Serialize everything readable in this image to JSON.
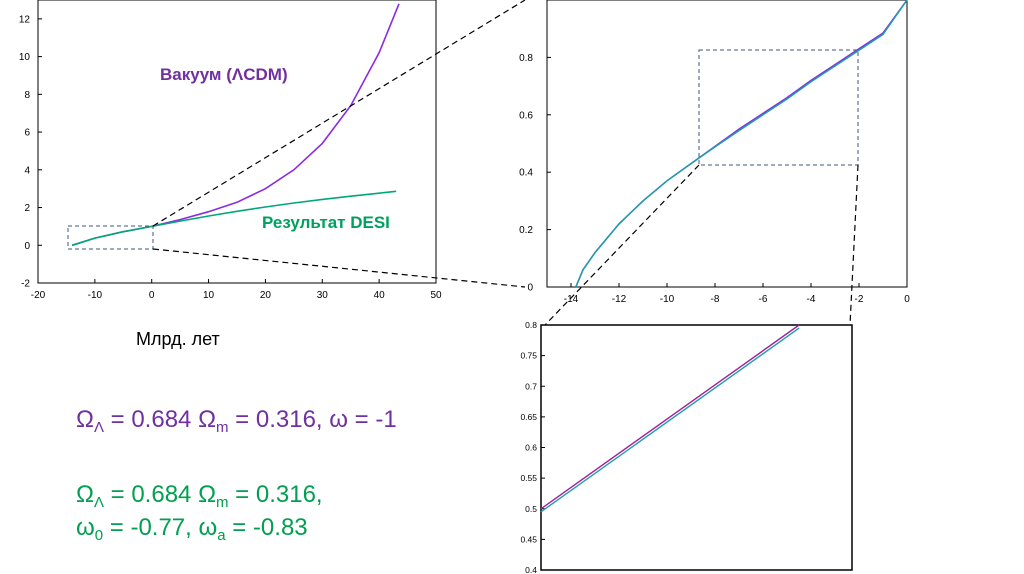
{
  "chart_data": [
    {
      "type": "line",
      "xlabel": "Млрд. лет",
      "xlim": [
        -20,
        50
      ],
      "ylim": [
        -2,
        13
      ],
      "xticks": [
        "-20",
        "-10",
        "0",
        "10",
        "20",
        "30",
        "40",
        "50"
      ],
      "yticks": [
        "-2",
        "0",
        "2",
        "4",
        "6",
        "8",
        "10",
        "12"
      ],
      "colors": {
        "vacuum": "#8a2be2",
        "desi": "#00a878",
        "box": "#2f4f6f"
      },
      "series": [
        {
          "name": "Вакуум (ΛCDM)",
          "x": [
            -14.0,
            -10,
            -5,
            0,
            5,
            10,
            15,
            20,
            25,
            30,
            35,
            40,
            43.5
          ],
          "y": [
            0.0,
            0.38,
            0.72,
            1.0,
            1.36,
            1.78,
            2.28,
            3.0,
            4.0,
            5.4,
            7.4,
            10.2,
            12.8
          ]
        },
        {
          "name": "Результат DESI",
          "x": [
            -14.0,
            -10,
            -5,
            0,
            5,
            10,
            15,
            20,
            25,
            30,
            35,
            40,
            43
          ],
          "y": [
            0.0,
            0.38,
            0.72,
            1.0,
            1.28,
            1.55,
            1.8,
            2.03,
            2.24,
            2.43,
            2.6,
            2.76,
            2.86
          ]
        }
      ],
      "zoom_box": {
        "x": [
          -14.5,
          0.5
        ],
        "y": [
          -0.15,
          1.1
        ]
      }
    },
    {
      "type": "line",
      "xlim": [
        -15,
        0
      ],
      "ylim": [
        0,
        1.0
      ],
      "xticks": [
        "-14",
        "-12",
        "-10",
        "-8",
        "-6",
        "-4",
        "-2",
        "0"
      ],
      "yticks": [
        "0",
        "0.2",
        "0.4",
        "0.6",
        "0.8"
      ],
      "series": [
        {
          "x": [
            -13.8,
            -13.5,
            -13,
            -12,
            -11,
            -10,
            -9,
            -8,
            -7,
            -6,
            -5,
            -4,
            -3,
            -2,
            -1,
            0
          ],
          "y": [
            0.0,
            0.06,
            0.12,
            0.22,
            0.3,
            0.37,
            0.43,
            0.49,
            0.55,
            0.605,
            0.66,
            0.72,
            0.775,
            0.83,
            0.885,
            1.0
          ]
        },
        {
          "x": [
            -13.8,
            -13.5,
            -13,
            -12,
            -11,
            -10,
            -9,
            -8,
            -7,
            -6,
            -5,
            -4,
            -3,
            -2,
            -1,
            0
          ],
          "y": [
            0.0,
            0.06,
            0.12,
            0.22,
            0.3,
            0.37,
            0.43,
            0.488,
            0.545,
            0.6,
            0.655,
            0.715,
            0.77,
            0.825,
            0.88,
            1.0
          ]
        }
      ],
      "zoom_box": {
        "x": [
          -8.3,
          -1.9
        ],
        "y": [
          0.42,
          0.82
        ]
      }
    },
    {
      "type": "line",
      "ylim": [
        0.4,
        0.8
      ],
      "yticks": [
        "0.4",
        "0.45",
        "0.5",
        "0.55",
        "0.6",
        "0.65",
        "0.7",
        "0.75",
        "0.8"
      ],
      "series": [
        {
          "x": [
            0,
            1
          ],
          "y": [
            0.5,
            0.8
          ]
        },
        {
          "x": [
            0,
            1
          ],
          "y": [
            0.495,
            0.795
          ]
        }
      ]
    }
  ],
  "labels": {
    "vacuum": "Вакуум (ΛCDM)",
    "desi": "Результат DESI",
    "xunit": "Млрд. лет"
  },
  "formulas": {
    "line1": {
      "omega_l": "Ω",
      "sub_l": "Λ",
      "val_l": " = 0.684  Ω",
      "sub_m": "m",
      "val_m": " = 0.316, ω = -1"
    },
    "line2": {
      "omega_l": "Ω",
      "sub_l": "Λ",
      "val_l": " = 0.684  Ω",
      "sub_m": "m",
      "val_m": " = 0.316,"
    },
    "line3": {
      "w0": " ω",
      "sub_0": "0",
      "val_0": " = -0.77, ω",
      "sub_a": "a",
      "val_a": " = -0.83"
    }
  }
}
